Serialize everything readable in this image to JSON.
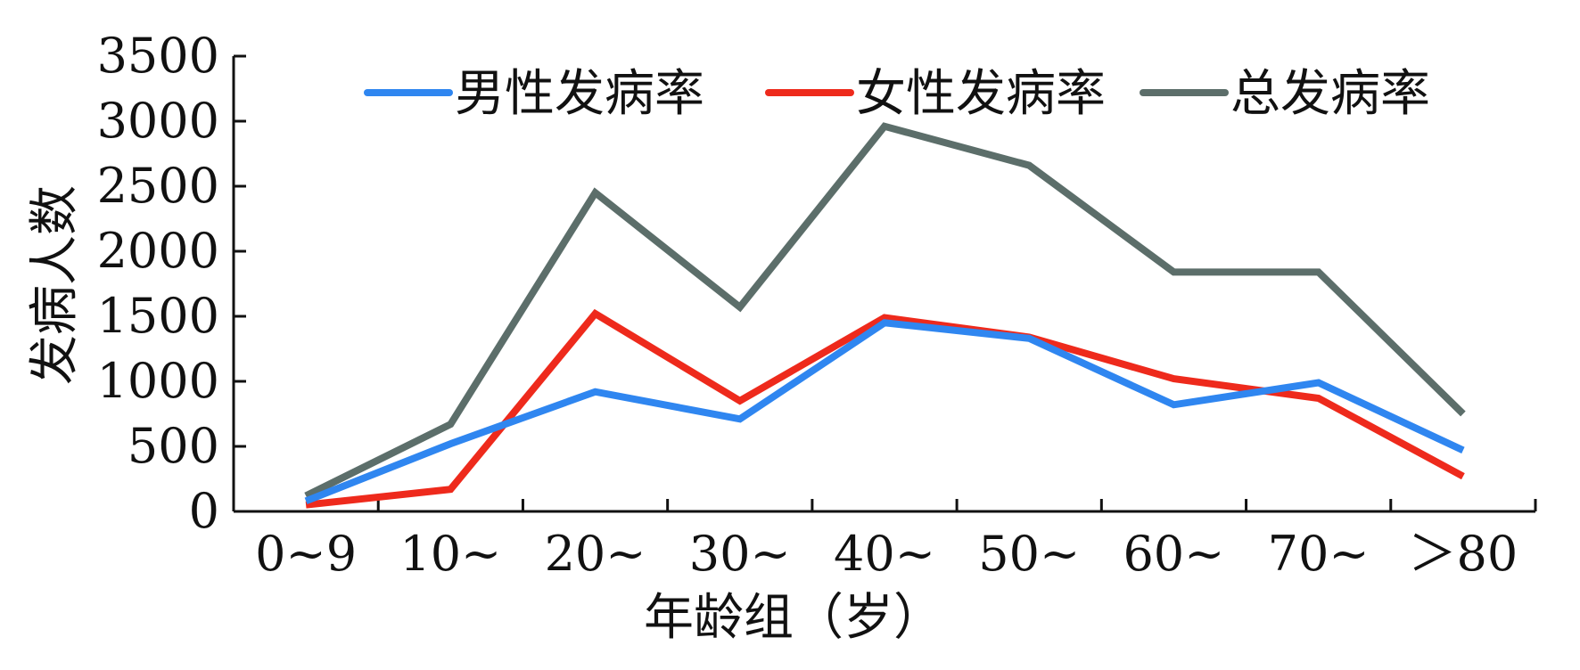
{
  "chart_data": {
    "type": "line",
    "xlabel": "年龄组（岁）",
    "ylabel": "发病人数",
    "categories": [
      "0~9",
      "10~",
      "20~",
      "30~",
      "40~",
      "50~",
      "60~",
      "70~",
      "＞80"
    ],
    "ylim": [
      0,
      3500
    ],
    "yticks": [
      0,
      500,
      1000,
      1500,
      2000,
      2500,
      3000,
      3500
    ],
    "grid": false,
    "legend_position": "top",
    "series": [
      {
        "name": "男性发病率",
        "color": "#2f86f0",
        "values": [
          80,
          520,
          920,
          710,
          1450,
          1330,
          820,
          990,
          470
        ]
      },
      {
        "name": "女性发病率",
        "color": "#ee2a1c",
        "values": [
          50,
          170,
          1520,
          850,
          1490,
          1340,
          1020,
          870,
          270
        ]
      },
      {
        "name": "总发病率",
        "color": "#5c6e6a",
        "values": [
          120,
          670,
          2450,
          1570,
          2960,
          2660,
          1840,
          1840,
          750
        ]
      }
    ]
  }
}
